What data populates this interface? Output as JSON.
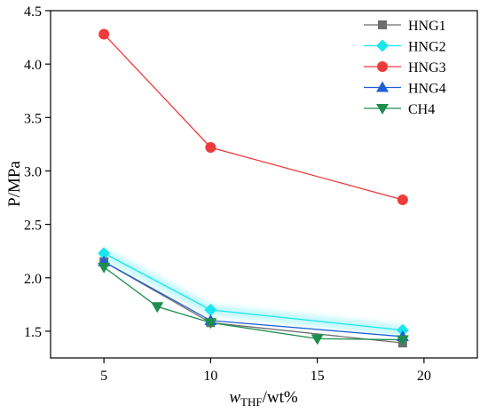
{
  "chart_data": {
    "type": "line",
    "xlabel_main": "w",
    "xlabel_sub": "THF",
    "xlabel_tail": "/wt%",
    "ylabel": "P/MPa",
    "xlim": [
      2.5,
      22.5
    ],
    "ylim": [
      1.25,
      4.5
    ],
    "xticks": [
      5,
      10,
      15,
      20
    ],
    "yticks": [
      1.5,
      2.0,
      2.5,
      3.0,
      3.5,
      4.0,
      4.5
    ],
    "ytick_labels": [
      "1.5",
      "2.0",
      "2.5",
      "3.0",
      "3.5",
      "4.0",
      "4.5"
    ],
    "legend_position": "top-right",
    "series": [
      {
        "name": "HNG1",
        "color": "#6e6e6e",
        "marker": "square",
        "x": [
          5,
          10,
          19
        ],
        "y": [
          2.15,
          1.58,
          1.39
        ]
      },
      {
        "name": "HNG2",
        "color": "#19e6ee",
        "marker": "diamond",
        "x": [
          5,
          10,
          19
        ],
        "y": [
          2.23,
          1.7,
          1.51
        ]
      },
      {
        "name": "HNG3",
        "color": "#ee3b3b",
        "marker": "circle",
        "x": [
          5,
          10,
          19
        ],
        "y": [
          4.28,
          3.22,
          2.73
        ]
      },
      {
        "name": "HNG4",
        "color": "#1f5fd6",
        "marker": "triangle-up",
        "x": [
          5,
          10,
          19
        ],
        "y": [
          2.15,
          1.6,
          1.45
        ]
      },
      {
        "name": "CH4",
        "color": "#1e8e4e",
        "marker": "triangle-down",
        "x": [
          5,
          7.5,
          10,
          15,
          19
        ],
        "y": [
          2.1,
          1.73,
          1.58,
          1.43,
          1.42
        ]
      }
    ]
  }
}
